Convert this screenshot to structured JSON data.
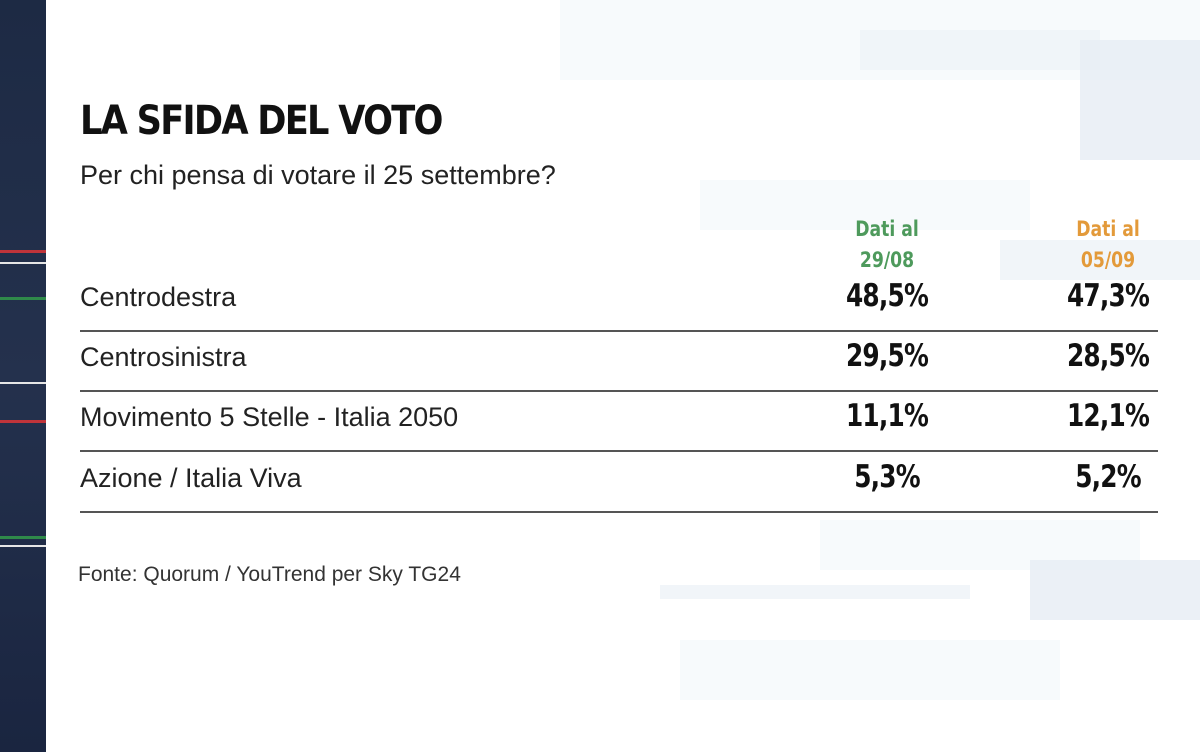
{
  "title": "LA SFIDA DEL VOTO",
  "subtitle": "Per chi pensa di votare il 25 settembre?",
  "columns": [
    {
      "line1": "Dati al",
      "line2": "29/08",
      "color": "#4e9a5c"
    },
    {
      "line1": "Dati al",
      "line2": "05/09",
      "color": "#e39a3a"
    }
  ],
  "rows": [
    {
      "label": "Centrodestra",
      "v1": "48,5%",
      "v2": "47,3%"
    },
    {
      "label": "Centrosinistra",
      "v1": "29,5%",
      "v2": "28,5%"
    },
    {
      "label": "Movimento 5 Stelle - Italia 2050",
      "v1": "11,1%",
      "v2": "12,1%"
    },
    {
      "label": "Azione / Italia Viva",
      "v1": "5,3%",
      "v2": "5,2%"
    }
  ],
  "source": "Fonte: Quorum / YouTrend per Sky TG24",
  "chart_data": {
    "type": "table",
    "title": "LA SFIDA DEL VOTO",
    "subtitle": "Per chi pensa di votare il 25 settembre?",
    "columns": [
      "Dati al 29/08",
      "Dati al 05/09"
    ],
    "categories": [
      "Centrodestra",
      "Centrosinistra",
      "Movimento 5 Stelle - Italia 2050",
      "Azione / Italia Viva"
    ],
    "series": [
      {
        "name": "Dati al 29/08",
        "values": [
          48.5,
          29.5,
          11.1,
          5.3
        ]
      },
      {
        "name": "Dati al 05/09",
        "values": [
          47.3,
          28.5,
          12.1,
          5.2
        ]
      }
    ],
    "unit": "%"
  }
}
